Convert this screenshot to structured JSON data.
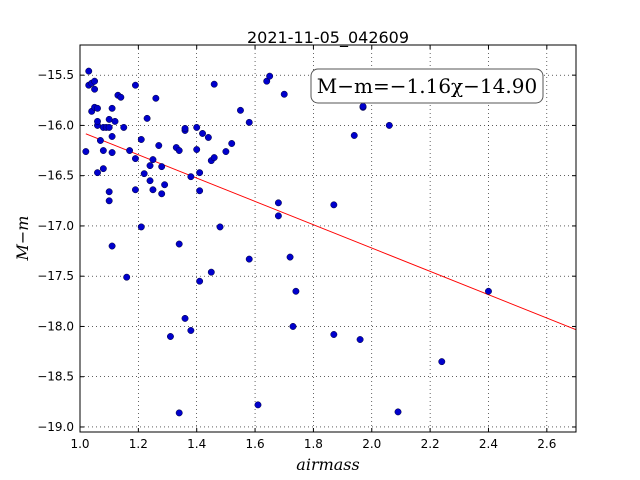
{
  "chart_data": {
    "type": "scatter",
    "title": "2021-11-05_042609",
    "xlabel": "airmass",
    "ylabel": "M−m",
    "xlim": [
      1.0,
      2.7
    ],
    "ylim": [
      -19.05,
      -15.2
    ],
    "x_ticks": [
      1.0,
      1.2,
      1.4,
      1.6,
      1.8,
      2.0,
      2.2,
      2.4,
      2.6
    ],
    "x_tick_labels": [
      "1.0",
      "1.2",
      "1.4",
      "1.6",
      "1.8",
      "2.0",
      "2.2",
      "2.4",
      "2.6"
    ],
    "y_ticks": [
      -15.5,
      -16.0,
      -16.5,
      -17.0,
      -17.5,
      -18.0,
      -18.5,
      -19.0
    ],
    "y_tick_labels": [
      "−15.5",
      "−16.0",
      "−16.5",
      "−17.0",
      "−17.5",
      "−18.0",
      "−18.5",
      "−19.0"
    ],
    "grid": true,
    "annotation": "M−m=−1.16χ−14.90",
    "fit": {
      "slope": -1.16,
      "intercept": -14.9
    },
    "colors": {
      "points": "#0000cc",
      "fit_line": "#ff0000"
    },
    "series": [
      {
        "points": [
          [
            1.02,
            -16.26
          ],
          [
            1.03,
            -15.46
          ],
          [
            1.03,
            -15.6
          ],
          [
            1.04,
            -15.58
          ],
          [
            1.04,
            -15.86
          ],
          [
            1.05,
            -15.56
          ],
          [
            1.05,
            -15.64
          ],
          [
            1.05,
            -15.82
          ],
          [
            1.06,
            -15.83
          ],
          [
            1.06,
            -16.0
          ],
          [
            1.06,
            -15.96
          ],
          [
            1.06,
            -16.47
          ],
          [
            1.07,
            -16.15
          ],
          [
            1.08,
            -16.02
          ],
          [
            1.08,
            -16.25
          ],
          [
            1.08,
            -16.43
          ],
          [
            1.09,
            -16.02
          ],
          [
            1.1,
            -15.94
          ],
          [
            1.1,
            -16.02
          ],
          [
            1.1,
            -16.66
          ],
          [
            1.1,
            -16.75
          ],
          [
            1.11,
            -15.83
          ],
          [
            1.11,
            -16.11
          ],
          [
            1.11,
            -16.27
          ],
          [
            1.11,
            -17.2
          ],
          [
            1.12,
            -15.96
          ],
          [
            1.13,
            -15.7
          ],
          [
            1.14,
            -15.72
          ],
          [
            1.15,
            -16.02
          ],
          [
            1.16,
            -17.51
          ],
          [
            1.17,
            -16.25
          ],
          [
            1.19,
            -15.6
          ],
          [
            1.19,
            -16.33
          ],
          [
            1.19,
            -16.64
          ],
          [
            1.21,
            -16.14
          ],
          [
            1.21,
            -17.01
          ],
          [
            1.22,
            -16.48
          ],
          [
            1.23,
            -15.93
          ],
          [
            1.24,
            -16.4
          ],
          [
            1.24,
            -16.55
          ],
          [
            1.25,
            -16.34
          ],
          [
            1.25,
            -16.64
          ],
          [
            1.26,
            -15.73
          ],
          [
            1.27,
            -16.2
          ],
          [
            1.28,
            -16.41
          ],
          [
            1.28,
            -16.68
          ],
          [
            1.29,
            -16.59
          ],
          [
            1.31,
            -18.1
          ],
          [
            1.33,
            -16.22
          ],
          [
            1.34,
            -16.25
          ],
          [
            1.34,
            -17.18
          ],
          [
            1.34,
            -18.86
          ],
          [
            1.36,
            -16.05
          ],
          [
            1.36,
            -16.03
          ],
          [
            1.36,
            -17.92
          ],
          [
            1.38,
            -18.04
          ],
          [
            1.38,
            -16.51
          ],
          [
            1.4,
            -16.24
          ],
          [
            1.4,
            -16.02
          ],
          [
            1.41,
            -16.47
          ],
          [
            1.41,
            -16.65
          ],
          [
            1.41,
            -17.55
          ],
          [
            1.42,
            -16.08
          ],
          [
            1.44,
            -16.12
          ],
          [
            1.45,
            -16.35
          ],
          [
            1.45,
            -17.46
          ],
          [
            1.46,
            -16.32
          ],
          [
            1.46,
            -15.59
          ],
          [
            1.48,
            -17.01
          ],
          [
            1.5,
            -16.26
          ],
          [
            1.52,
            -16.18
          ],
          [
            1.55,
            -15.85
          ],
          [
            1.58,
            -17.33
          ],
          [
            1.58,
            -15.97
          ],
          [
            1.61,
            -18.78
          ],
          [
            1.64,
            -15.56
          ],
          [
            1.65,
            -15.51
          ],
          [
            1.68,
            -16.77
          ],
          [
            1.68,
            -16.9
          ],
          [
            1.7,
            -15.69
          ],
          [
            1.72,
            -17.31
          ],
          [
            1.73,
            -18.0
          ],
          [
            1.74,
            -17.65
          ],
          [
            1.87,
            -18.08
          ],
          [
            1.87,
            -16.79
          ],
          [
            1.94,
            -16.1
          ],
          [
            1.96,
            -18.13
          ],
          [
            1.97,
            -15.82
          ],
          [
            1.97,
            -15.81
          ],
          [
            2.01,
            -15.72
          ],
          [
            2.06,
            -16.0
          ],
          [
            2.09,
            -18.85
          ],
          [
            2.24,
            -18.35
          ],
          [
            2.4,
            -17.65
          ]
        ]
      }
    ]
  }
}
